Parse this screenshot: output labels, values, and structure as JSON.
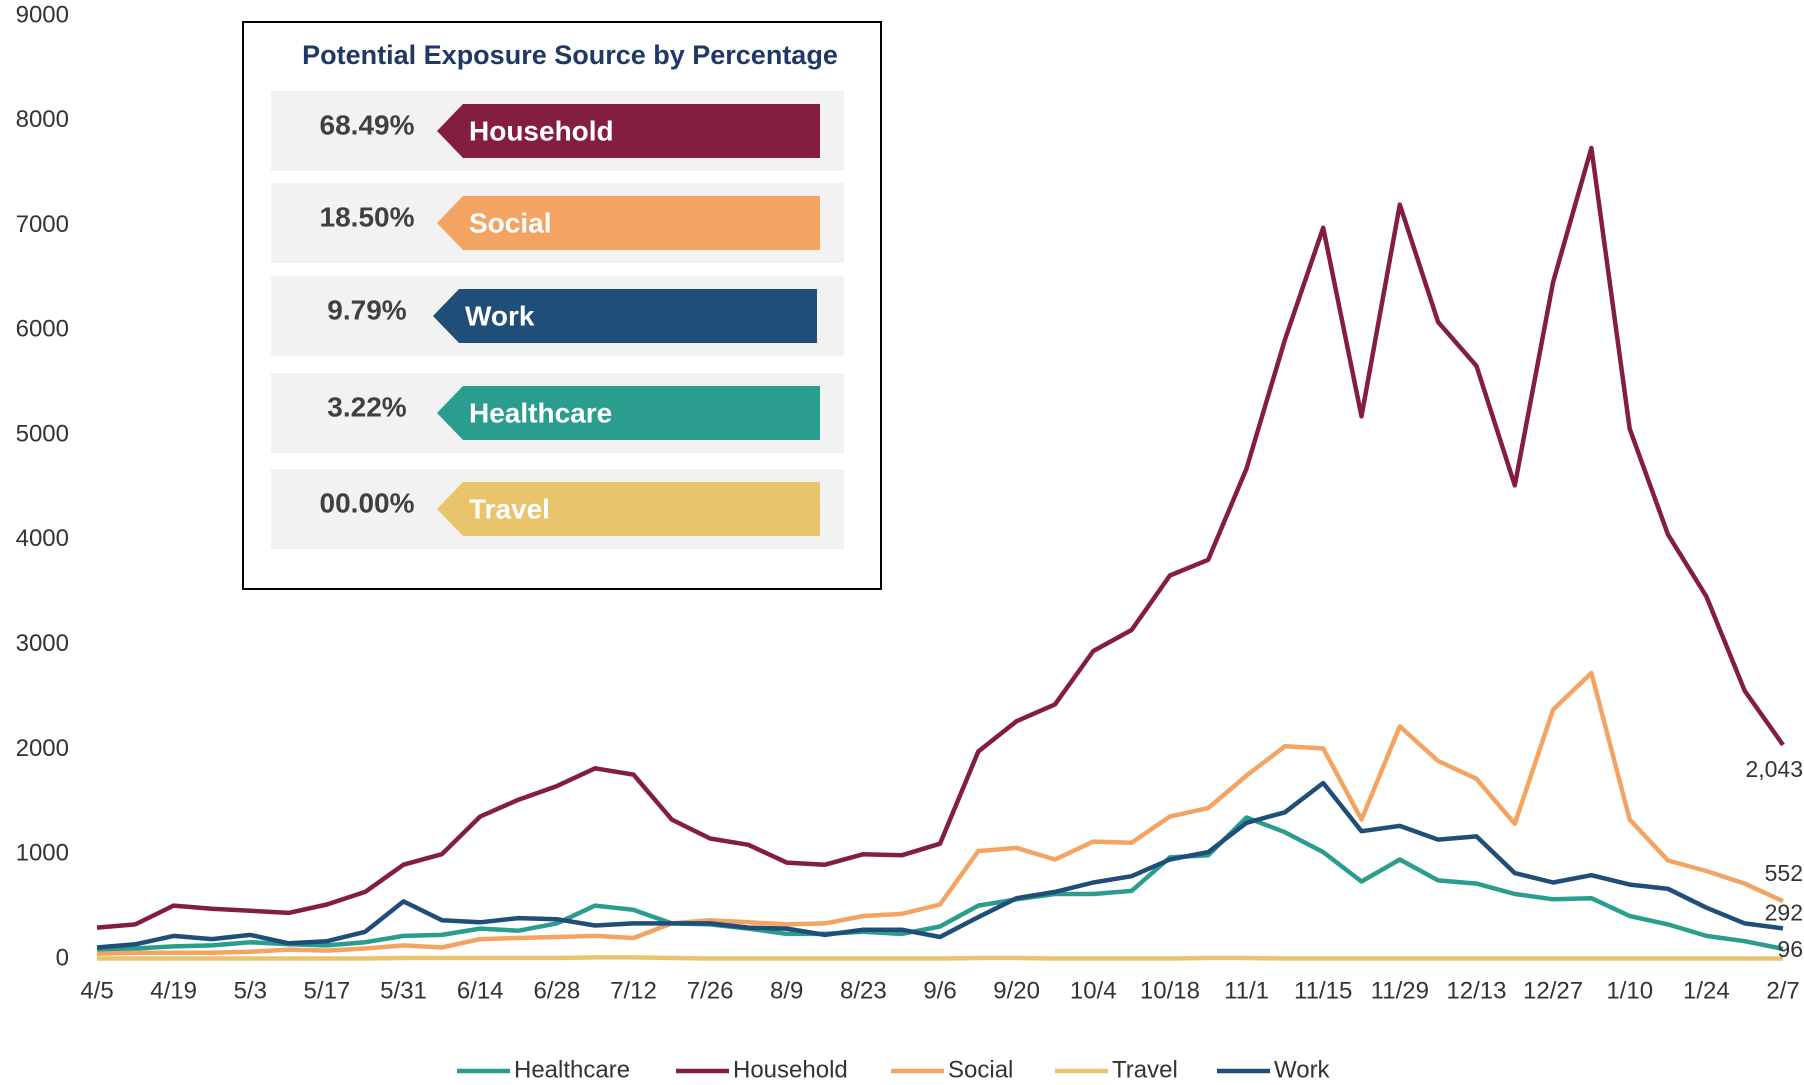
{
  "chart_data": {
    "type": "line",
    "categories": [
      "4/5",
      null,
      "4/19",
      null,
      "5/3",
      null,
      "5/17",
      null,
      "5/31",
      null,
      "6/14",
      null,
      "6/28",
      null,
      "7/12",
      null,
      "7/26",
      null,
      "8/9",
      null,
      "8/23",
      null,
      "9/6",
      null,
      "9/20",
      null,
      "10/4",
      null,
      "10/18",
      null,
      "11/1",
      null,
      "11/15",
      null,
      "11/29",
      null,
      "12/13",
      null,
      "12/27",
      null,
      "1/10",
      null,
      "1/24",
      null,
      "2/7"
    ],
    "ylim": [
      0,
      9000
    ],
    "yticks": [
      0,
      1000,
      2000,
      3000,
      4000,
      5000,
      6000,
      7000,
      8000,
      9000
    ],
    "series": [
      {
        "name": "Healthcare",
        "color": "#2a9d8f",
        "values": [
          80,
          100,
          120,
          130,
          160,
          140,
          130,
          160,
          220,
          230,
          290,
          270,
          340,
          510,
          470,
          340,
          330,
          290,
          240,
          240,
          260,
          240,
          310,
          510,
          570,
          620,
          620,
          650,
          970,
          990,
          1350,
          1210,
          1020,
          740,
          950,
          750,
          720,
          620,
          570,
          580,
          410,
          330,
          220,
          170,
          96
        ],
        "value_labels": [
          null,
          null,
          null,
          null,
          null,
          null,
          null,
          null,
          null,
          null,
          null,
          null,
          null,
          null,
          null,
          null,
          null,
          null,
          null,
          null,
          null,
          null,
          null,
          null,
          null,
          null,
          null,
          null,
          null,
          null,
          null,
          null,
          null,
          null,
          null,
          null,
          null,
          null,
          null,
          null,
          null,
          null,
          null,
          null,
          "96"
        ]
      },
      {
        "name": "Household",
        "color": "#841e41",
        "values": [
          300,
          330,
          510,
          480,
          460,
          440,
          520,
          640,
          900,
          1000,
          1360,
          1520,
          1650,
          1820,
          1760,
          1330,
          1150,
          1090,
          920,
          900,
          1000,
          990,
          1100,
          1980,
          2270,
          2430,
          2940,
          3140,
          3660,
          3810,
          4680,
          5910,
          6980,
          5180,
          7200,
          6080,
          5660,
          4520,
          6460,
          7740,
          5060,
          4050,
          3460,
          2560,
          2043
        ],
        "value_labels": [
          null,
          null,
          null,
          null,
          null,
          null,
          null,
          null,
          null,
          null,
          null,
          null,
          null,
          null,
          null,
          null,
          null,
          null,
          null,
          null,
          null,
          null,
          null,
          null,
          null,
          null,
          null,
          null,
          null,
          null,
          null,
          null,
          null,
          null,
          null,
          null,
          null,
          null,
          null,
          null,
          null,
          null,
          null,
          null,
          "2,043"
        ]
      },
      {
        "name": "Social",
        "color": "#f4a462",
        "values": [
          50,
          60,
          60,
          60,
          70,
          90,
          80,
          100,
          130,
          110,
          190,
          200,
          210,
          220,
          200,
          340,
          370,
          350,
          330,
          340,
          410,
          430,
          520,
          1030,
          1060,
          950,
          1120,
          1110,
          1360,
          1440,
          1750,
          2030,
          2010,
          1330,
          2220,
          1890,
          1720,
          1290,
          2380,
          2730,
          1330,
          940,
          840,
          720,
          552
        ],
        "value_labels": [
          null,
          null,
          null,
          null,
          null,
          null,
          null,
          null,
          null,
          null,
          null,
          null,
          null,
          null,
          null,
          null,
          null,
          null,
          null,
          null,
          null,
          null,
          null,
          null,
          null,
          null,
          null,
          null,
          null,
          null,
          null,
          null,
          null,
          null,
          null,
          null,
          null,
          null,
          null,
          null,
          null,
          null,
          null,
          null,
          "552"
        ]
      },
      {
        "name": "Travel",
        "color": "#e9c46a",
        "values": [
          5,
          5,
          5,
          5,
          5,
          5,
          5,
          5,
          10,
          10,
          10,
          10,
          10,
          15,
          15,
          10,
          5,
          5,
          5,
          5,
          5,
          5,
          5,
          10,
          10,
          5,
          5,
          5,
          5,
          10,
          10,
          5,
          5,
          5,
          5,
          5,
          5,
          5,
          5,
          5,
          5,
          5,
          5,
          5,
          5
        ]
      },
      {
        "name": "Work",
        "color": "#1f4e79",
        "values": [
          110,
          140,
          220,
          190,
          230,
          150,
          170,
          260,
          550,
          370,
          350,
          390,
          380,
          320,
          340,
          340,
          340,
          300,
          290,
          230,
          280,
          280,
          210,
          400,
          580,
          640,
          730,
          790,
          950,
          1020,
          1300,
          1400,
          1680,
          1220,
          1270,
          1140,
          1170,
          820,
          730,
          800,
          710,
          670,
          490,
          340,
          292
        ],
        "value_labels": [
          null,
          null,
          null,
          null,
          null,
          null,
          null,
          null,
          null,
          null,
          null,
          null,
          null,
          null,
          null,
          null,
          null,
          null,
          null,
          null,
          null,
          null,
          null,
          null,
          null,
          null,
          null,
          null,
          null,
          null,
          null,
          null,
          null,
          null,
          null,
          null,
          null,
          null,
          null,
          null,
          null,
          null,
          null,
          null,
          "292"
        ]
      }
    ]
  },
  "panel": {
    "title": "Potential Exposure Source by Percentage",
    "items": [
      {
        "percent": "68.49%",
        "label": "Household",
        "color": "#841e41"
      },
      {
        "percent": "18.50%",
        "label": "Social",
        "color": "#f4a462"
      },
      {
        "percent": "9.79%",
        "label": "Work",
        "color": "#1f4e79"
      },
      {
        "percent": "3.22%",
        "label": "Healthcare",
        "color": "#2a9d8f"
      },
      {
        "percent": "00.00%",
        "label": "Travel",
        "color": "#e9c46a"
      }
    ]
  }
}
